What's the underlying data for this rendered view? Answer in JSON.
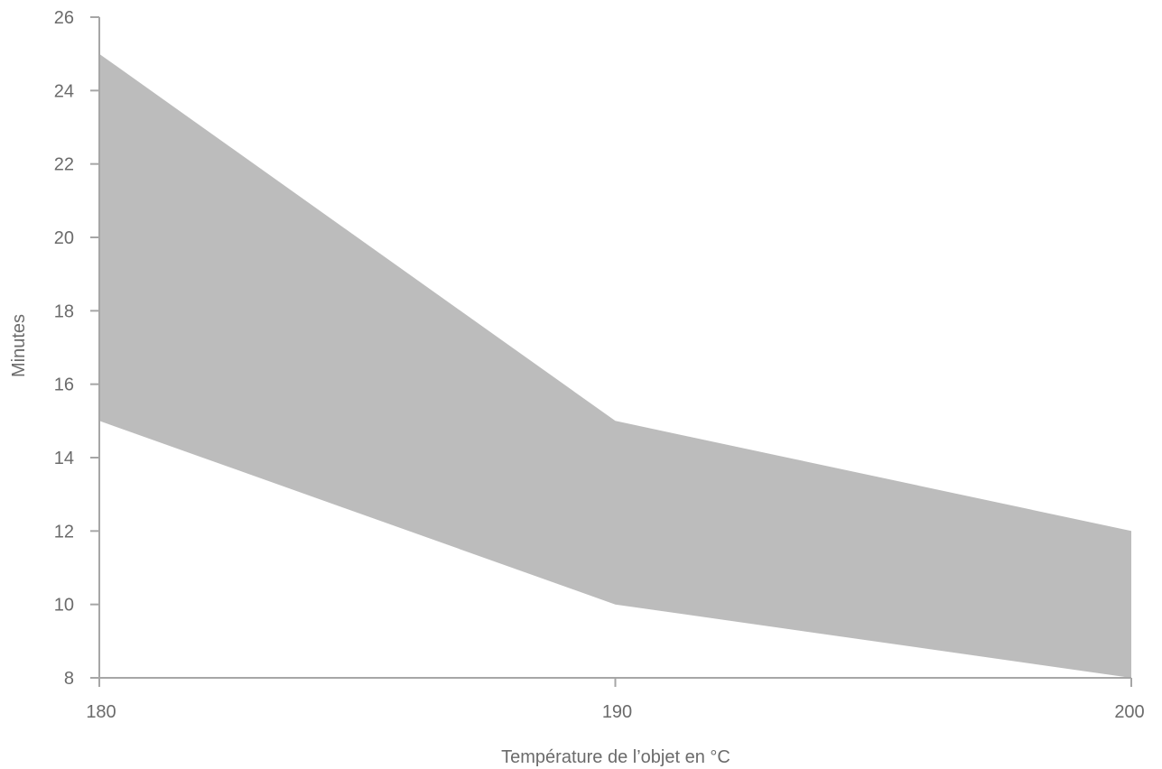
{
  "chart_data": {
    "type": "area",
    "xlabel": "Température de l’objet en °C",
    "ylabel": "Minutes",
    "x": [
      180,
      190,
      200
    ],
    "x_ticks": [
      "180",
      "190",
      "200"
    ],
    "y_ticks": [
      "8",
      "10",
      "12",
      "14",
      "16",
      "18",
      "20",
      "22",
      "24",
      "26"
    ],
    "xlim": [
      180,
      200
    ],
    "ylim": [
      8,
      26
    ],
    "band": {
      "upper": [
        25,
        15,
        12
      ],
      "lower": [
        15,
        10,
        8
      ]
    },
    "grid": false,
    "legend": "none",
    "colors": {
      "fill": "#bcbcbc",
      "axis": "#a6a6a6",
      "text": "#6b6b6b"
    }
  }
}
